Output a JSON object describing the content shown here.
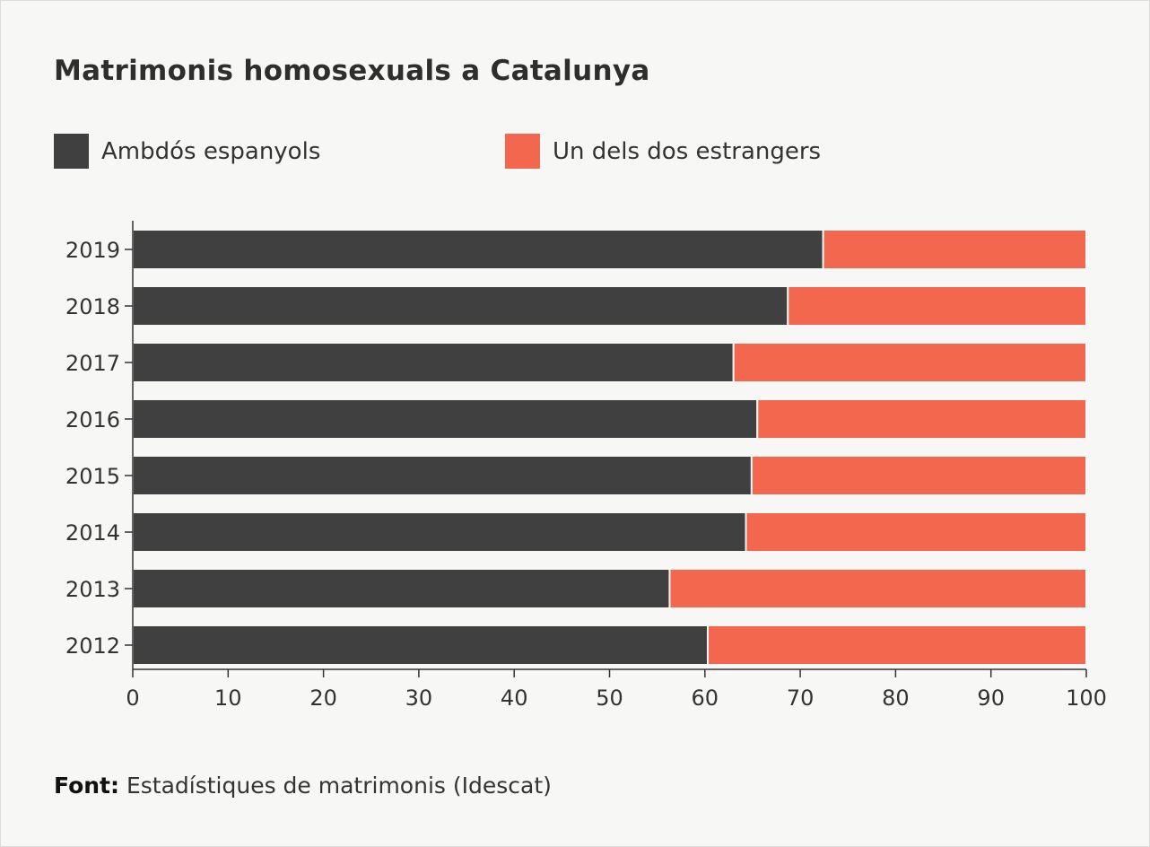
{
  "title": "Matrimonis homosexuals a Catalunya",
  "source": {
    "label": "Font:",
    "text": "Estadístiques de matrimonis (Idescat)"
  },
  "chart_data": {
    "type": "bar",
    "orientation": "horizontal",
    "stacked": true,
    "title": "Matrimonis homosexuals a Catalunya",
    "categories": [
      "2019",
      "2018",
      "2017",
      "2016",
      "2015",
      "2014",
      "2013",
      "2012"
    ],
    "series": [
      {
        "name": "Ambdós espanyols",
        "color": "#404040",
        "values": [
          72.4,
          68.7,
          63.0,
          65.5,
          64.9,
          64.3,
          56.3,
          60.3
        ]
      },
      {
        "name": "Un dels dos estrangers",
        "color": "#f2674e",
        "values": [
          27.6,
          31.3,
          37.0,
          34.5,
          35.1,
          35.7,
          43.7,
          39.7
        ]
      }
    ],
    "xlim": [
      0,
      100
    ],
    "xticks": [
      "0",
      "10",
      "20",
      "30",
      "40",
      "50",
      "60",
      "70",
      "80",
      "90",
      "100"
    ],
    "xlabel": "",
    "ylabel": "",
    "grid": false,
    "legend": "top-left"
  }
}
